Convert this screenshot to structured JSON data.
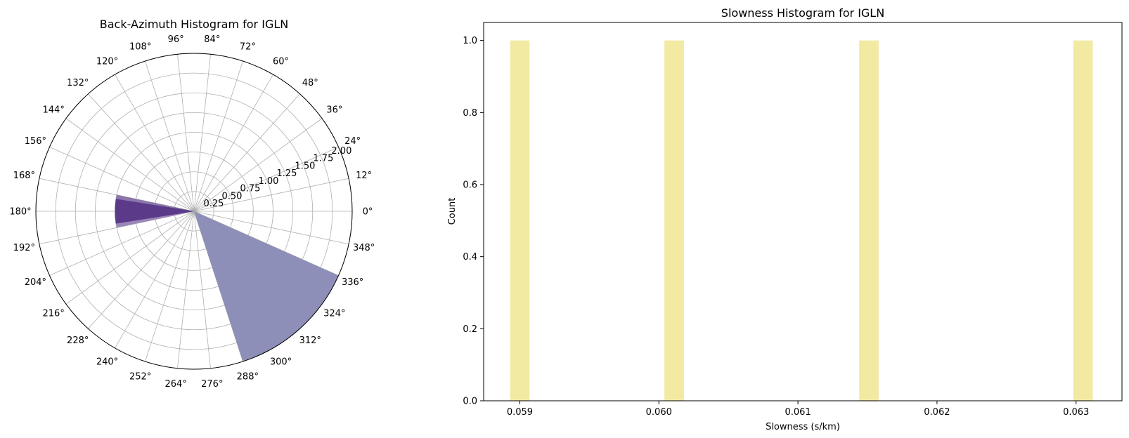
{
  "chart_data": [
    {
      "type": "bar",
      "projection": "polar",
      "title": "Back-Azimuth Histogram for IGLN",
      "theta_ticks": [
        "0°",
        "12°",
        "24°",
        "36°",
        "48°",
        "60°",
        "72°",
        "84°",
        "96°",
        "108°",
        "120°",
        "132°",
        "144°",
        "156°",
        "168°",
        "180°",
        "192°",
        "204°",
        "216°",
        "228°",
        "240°",
        "252°",
        "264°",
        "276°",
        "288°",
        "300°",
        "312°",
        "324°",
        "336°",
        "348°"
      ],
      "radial_ticks": [
        "0.25",
        "0.50",
        "0.75",
        "1.00",
        "1.25",
        "1.50",
        "1.75",
        "2.00"
      ],
      "rlim": [
        0,
        2
      ],
      "grid": true,
      "bars": [
        {
          "start_deg": 168,
          "end_deg": 180,
          "value": 1,
          "color": "#8a76ab"
        },
        {
          "start_deg": 180,
          "end_deg": 192,
          "value": 1,
          "color": "#9a86b8"
        },
        {
          "start_deg": 171,
          "end_deg": 189,
          "value": 1,
          "color": "#5b3a8a"
        },
        {
          "start_deg": 288,
          "end_deg": 336,
          "value": 2,
          "color": "#8e8fb8"
        }
      ]
    },
    {
      "type": "bar",
      "title": "Slowness Histogram for IGLN",
      "xlabel": "Slowness (s/km)",
      "ylabel": "Count",
      "xlim": [
        0.05874,
        0.06333
      ],
      "ylim": [
        0,
        1.05
      ],
      "x_ticks": [
        "0.059",
        "0.060",
        "0.061",
        "0.062",
        "0.063"
      ],
      "y_ticks": [
        "0.0",
        "0.2",
        "0.4",
        "0.6",
        "0.8",
        "1.0"
      ],
      "bar_width": 0.00014,
      "bars": [
        {
          "x": 0.059,
          "value": 1
        },
        {
          "x": 0.06011,
          "value": 1
        },
        {
          "x": 0.06151,
          "value": 1
        },
        {
          "x": 0.06305,
          "value": 1
        }
      ],
      "color": "#f2e9a3",
      "grid": false
    }
  ]
}
